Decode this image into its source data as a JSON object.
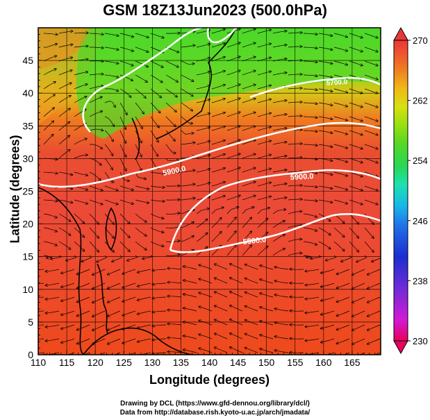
{
  "title": "GSM 18Z13Jun2023 (500.0hPa)",
  "map": {
    "xlabel": "Longitude (degrees)",
    "ylabel": "Latitude  (degrees)",
    "lon_ticks": [
      "110",
      "115",
      "120",
      "125",
      "130",
      "135",
      "140",
      "145",
      "150",
      "155",
      "160",
      "165"
    ],
    "lat_ticks": [
      "0",
      "5",
      "10",
      "15",
      "20",
      "25",
      "30",
      "35",
      "40",
      "45"
    ],
    "lon_range": [
      110,
      170
    ],
    "lat_range": [
      0,
      50
    ],
    "grid": true,
    "contours": [
      {
        "label": "5900.0"
      },
      {
        "label": "5900.0"
      },
      {
        "label": "5900.0"
      },
      {
        "label": "5700.0"
      }
    ]
  },
  "colorbar": {
    "ticks": [
      "270",
      "262",
      "254",
      "246",
      "238",
      "230"
    ],
    "range": [
      230,
      270
    ],
    "colors": [
      "#e8005a",
      "#d21ad6",
      "#6a2cd8",
      "#1a2ed0",
      "#1f6fe8",
      "#18b8e8",
      "#1fe0b0",
      "#28d858",
      "#5ad820",
      "#9ae010",
      "#d8e010",
      "#f0b818",
      "#f08020",
      "#f05030",
      "#e83838"
    ]
  },
  "credits": {
    "line1": "Drawing by DCL (https://www.gfd-dennou.org/library/dcl/)",
    "line2": "Data from http://database.rish.kyoto-u.ac.jp/arch/jmadata/"
  }
}
